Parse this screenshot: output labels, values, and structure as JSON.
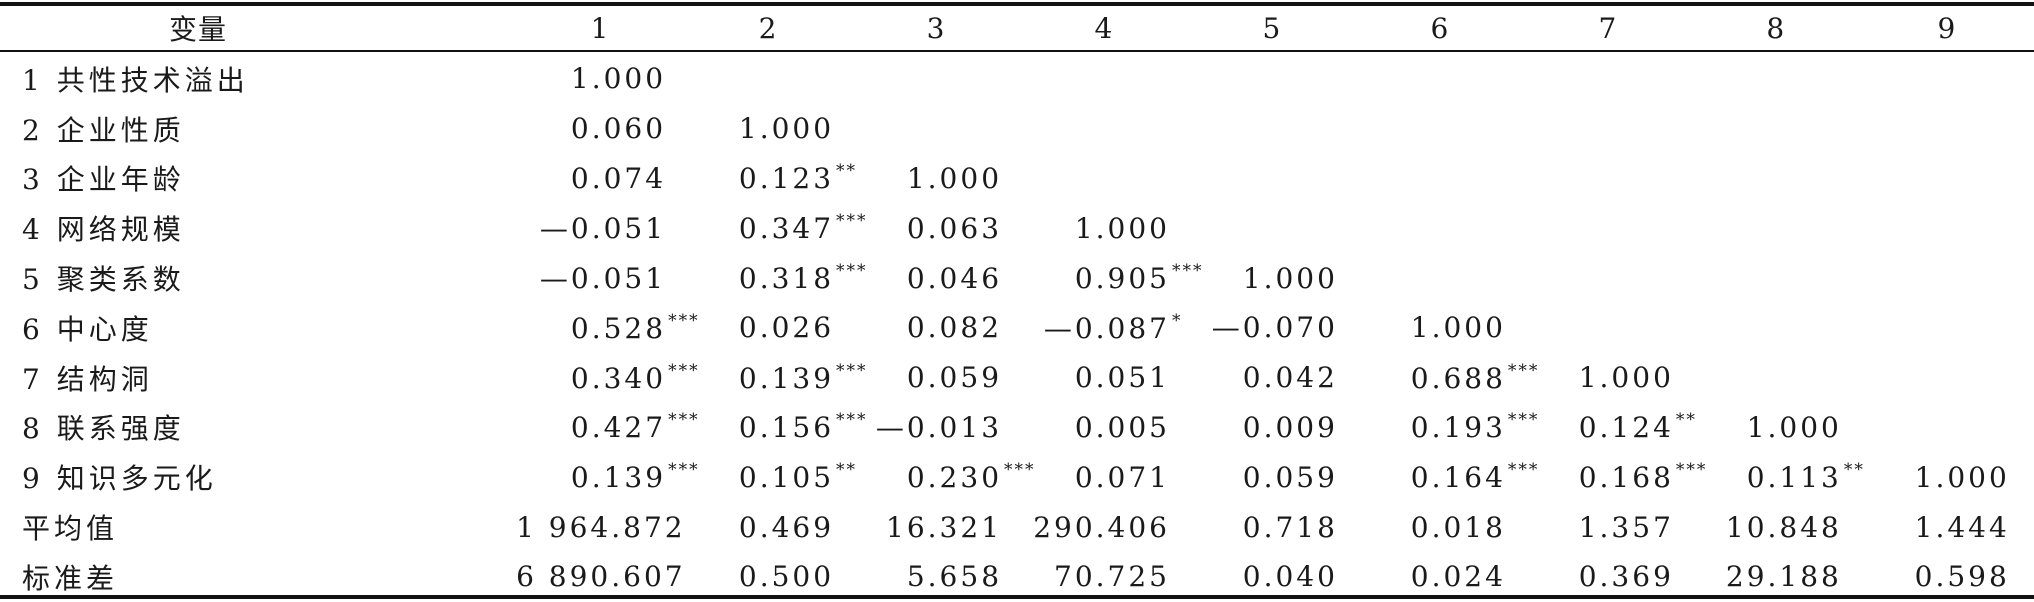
{
  "table": {
    "header": {
      "variable": "变量",
      "columns": [
        "1",
        "2",
        "3",
        "4",
        "5",
        "6",
        "7",
        "8",
        "9"
      ]
    },
    "rows": [
      {
        "label": "1 共性技术溢出",
        "cells": [
          {
            "v": "1.000",
            "s": ""
          },
          {
            "v": "",
            "s": ""
          },
          {
            "v": "",
            "s": ""
          },
          {
            "v": "",
            "s": ""
          },
          {
            "v": "",
            "s": ""
          },
          {
            "v": "",
            "s": ""
          },
          {
            "v": "",
            "s": ""
          },
          {
            "v": "",
            "s": ""
          },
          {
            "v": "",
            "s": ""
          }
        ]
      },
      {
        "label": "2 企业性质",
        "cells": [
          {
            "v": "0.060",
            "s": ""
          },
          {
            "v": "1.000",
            "s": ""
          },
          {
            "v": "",
            "s": ""
          },
          {
            "v": "",
            "s": ""
          },
          {
            "v": "",
            "s": ""
          },
          {
            "v": "",
            "s": ""
          },
          {
            "v": "",
            "s": ""
          },
          {
            "v": "",
            "s": ""
          },
          {
            "v": "",
            "s": ""
          }
        ]
      },
      {
        "label": "3 企业年龄",
        "cells": [
          {
            "v": "0.074",
            "s": ""
          },
          {
            "v": "0.123",
            "s": "**"
          },
          {
            "v": "1.000",
            "s": ""
          },
          {
            "v": "",
            "s": ""
          },
          {
            "v": "",
            "s": ""
          },
          {
            "v": "",
            "s": ""
          },
          {
            "v": "",
            "s": ""
          },
          {
            "v": "",
            "s": ""
          },
          {
            "v": "",
            "s": ""
          }
        ]
      },
      {
        "label": "4 网络规模",
        "cells": [
          {
            "v": "—0.051",
            "s": ""
          },
          {
            "v": "0.347",
            "s": "***"
          },
          {
            "v": "0.063",
            "s": ""
          },
          {
            "v": "1.000",
            "s": ""
          },
          {
            "v": "",
            "s": ""
          },
          {
            "v": "",
            "s": ""
          },
          {
            "v": "",
            "s": ""
          },
          {
            "v": "",
            "s": ""
          },
          {
            "v": "",
            "s": ""
          }
        ]
      },
      {
        "label": "5 聚类系数",
        "cells": [
          {
            "v": "—0.051",
            "s": ""
          },
          {
            "v": "0.318",
            "s": "***"
          },
          {
            "v": "0.046",
            "s": ""
          },
          {
            "v": "0.905",
            "s": "***"
          },
          {
            "v": "1.000",
            "s": ""
          },
          {
            "v": "",
            "s": ""
          },
          {
            "v": "",
            "s": ""
          },
          {
            "v": "",
            "s": ""
          },
          {
            "v": "",
            "s": ""
          }
        ]
      },
      {
        "label": "6 中心度",
        "cells": [
          {
            "v": "0.528",
            "s": "***"
          },
          {
            "v": "0.026",
            "s": ""
          },
          {
            "v": "0.082",
            "s": ""
          },
          {
            "v": "—0.087",
            "s": "*"
          },
          {
            "v": "—0.070",
            "s": ""
          },
          {
            "v": "1.000",
            "s": ""
          },
          {
            "v": "",
            "s": ""
          },
          {
            "v": "",
            "s": ""
          },
          {
            "v": "",
            "s": ""
          }
        ]
      },
      {
        "label": "7 结构洞",
        "cells": [
          {
            "v": "0.340",
            "s": "***"
          },
          {
            "v": "0.139",
            "s": "***"
          },
          {
            "v": "0.059",
            "s": ""
          },
          {
            "v": "0.051",
            "s": ""
          },
          {
            "v": "0.042",
            "s": ""
          },
          {
            "v": "0.688",
            "s": "***"
          },
          {
            "v": "1.000",
            "s": ""
          },
          {
            "v": "",
            "s": ""
          },
          {
            "v": "",
            "s": ""
          }
        ]
      },
      {
        "label": "8 联系强度",
        "cells": [
          {
            "v": "0.427",
            "s": "***"
          },
          {
            "v": "0.156",
            "s": "***"
          },
          {
            "v": "—0.013",
            "s": ""
          },
          {
            "v": "0.005",
            "s": ""
          },
          {
            "v": "0.009",
            "s": ""
          },
          {
            "v": "0.193",
            "s": "***"
          },
          {
            "v": "0.124",
            "s": "**"
          },
          {
            "v": "1.000",
            "s": ""
          },
          {
            "v": "",
            "s": ""
          }
        ]
      },
      {
        "label": "9 知识多元化",
        "cells": [
          {
            "v": "0.139",
            "s": "***"
          },
          {
            "v": "0.105",
            "s": "**"
          },
          {
            "v": "0.230",
            "s": "***"
          },
          {
            "v": "0.071",
            "s": ""
          },
          {
            "v": "0.059",
            "s": ""
          },
          {
            "v": "0.164",
            "s": "***"
          },
          {
            "v": "0.168",
            "s": "***"
          },
          {
            "v": "0.113",
            "s": "**"
          },
          {
            "v": "1.000",
            "s": ""
          }
        ]
      },
      {
        "label": "平均值",
        "cells": [
          {
            "v": "1 964.872",
            "s": ""
          },
          {
            "v": "0.469",
            "s": ""
          },
          {
            "v": "16.321",
            "s": ""
          },
          {
            "v": "290.406",
            "s": ""
          },
          {
            "v": "0.718",
            "s": ""
          },
          {
            "v": "0.018",
            "s": ""
          },
          {
            "v": "1.357",
            "s": ""
          },
          {
            "v": "10.848",
            "s": ""
          },
          {
            "v": "1.444",
            "s": ""
          }
        ]
      },
      {
        "label": "标准差",
        "cells": [
          {
            "v": "6 890.607",
            "s": ""
          },
          {
            "v": "0.500",
            "s": ""
          },
          {
            "v": "5.658",
            "s": ""
          },
          {
            "v": "70.725",
            "s": ""
          },
          {
            "v": "0.040",
            "s": ""
          },
          {
            "v": "0.024",
            "s": ""
          },
          {
            "v": "0.369",
            "s": ""
          },
          {
            "v": "29.188",
            "s": ""
          },
          {
            "v": "0.598",
            "s": ""
          }
        ]
      }
    ]
  }
}
